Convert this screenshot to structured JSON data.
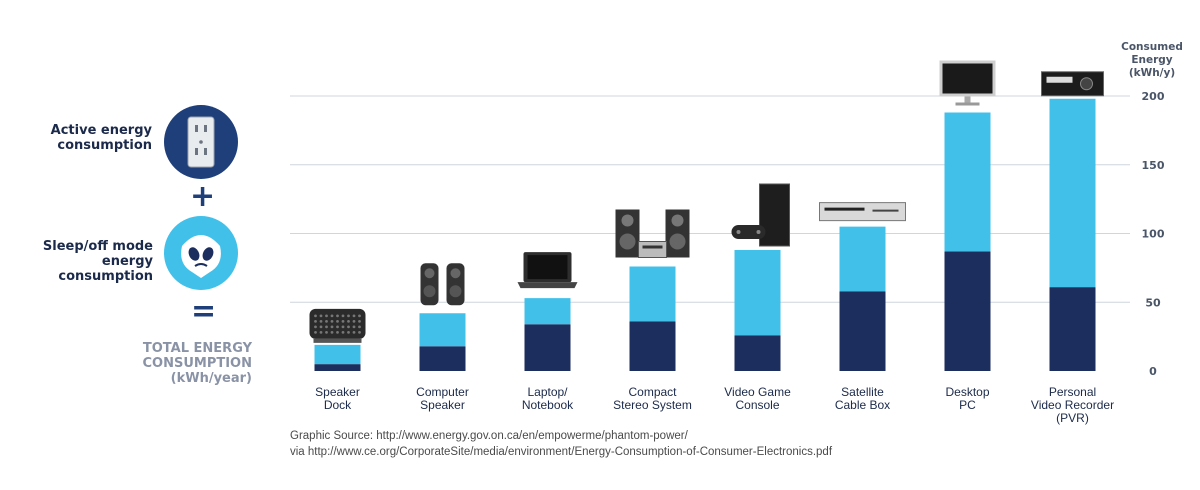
{
  "legend": {
    "active_label": "Active energy consumption",
    "sleep_label": "Sleep/off mode energy consumption",
    "plus": "+",
    "equals": "=",
    "total_label_1": "TOTAL ENERGY",
    "total_label_2": "CONSUMPTION",
    "total_label_3": "(kWh/year)",
    "active_icon": "outlet-icon",
    "sleep_icon": "ghost-icon"
  },
  "colors": {
    "active": "#41c0ea",
    "sleep": "#1b2e5e",
    "grid": "#cfd6df"
  },
  "chart_data": {
    "type": "bar",
    "stacked": true,
    "categories": [
      [
        "Speaker",
        "Dock"
      ],
      [
        "Computer",
        "Speaker"
      ],
      [
        "Laptop/",
        "Notebook"
      ],
      [
        "Compact",
        "Stereo System"
      ],
      [
        "Video Game",
        "Console"
      ],
      [
        "Satellite",
        "Cable Box"
      ],
      [
        "Desktop",
        "PC"
      ],
      [
        "Personal",
        "Video Recorder",
        "(PVR)"
      ]
    ],
    "series": [
      {
        "name": "Sleep/off mode energy consumption",
        "values": [
          5,
          18,
          34,
          36,
          26,
          58,
          87,
          61
        ]
      },
      {
        "name": "Active energy consumption",
        "values": [
          14,
          24,
          19,
          40,
          62,
          47,
          101,
          137
        ]
      }
    ],
    "ylabel": [
      "Consumed",
      "Energy",
      "(kWh/y)"
    ],
    "yticks": [
      0,
      50,
      100,
      150,
      200
    ],
    "ylim": [
      0,
      200
    ],
    "grid": true,
    "axis_side": "right",
    "icons": [
      "speaker-dock-icon",
      "computer-speaker-icon",
      "laptop-icon",
      "stereo-system-icon",
      "game-console-icon",
      "cable-box-icon",
      "desktop-monitor-icon",
      "pvr-icon"
    ]
  },
  "source": {
    "line1": "Graphic Source: http://www.energy.gov.on.ca/en/empowerme/phantom-power/",
    "line2": "via http://www.ce.org/CorporateSite/media/environment/Energy-Consumption-of-Consumer-Electronics.pdf"
  }
}
